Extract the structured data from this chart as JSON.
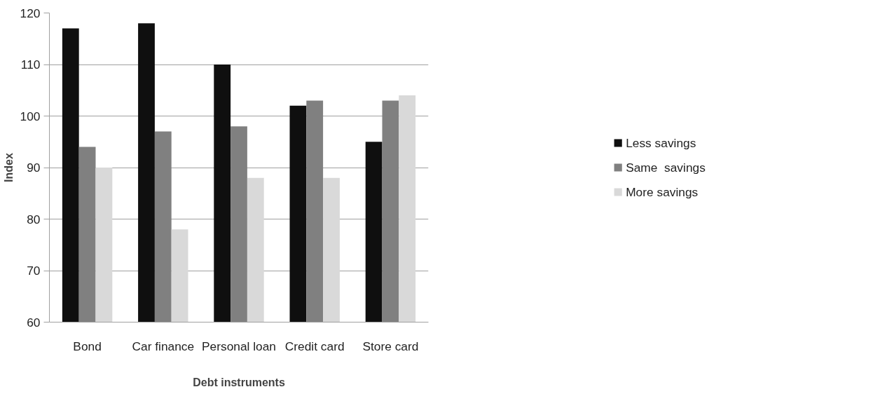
{
  "chart_data": {
    "type": "bar",
    "xlabel": "Debt instruments",
    "ylabel": "Index",
    "categories": [
      "Bond",
      "Car finance",
      "Personal loan",
      "Credit card",
      "Store card"
    ],
    "series": [
      {
        "name": "Less savings",
        "color": "#0f0f0f",
        "values": [
          117,
          118,
          110,
          102,
          95
        ]
      },
      {
        "name": "Same  savings",
        "color": "#808080",
        "values": [
          94,
          97,
          98,
          103,
          103
        ]
      },
      {
        "name": "More savings",
        "color": "#d9d9d9",
        "values": [
          90,
          78,
          88,
          88,
          104
        ]
      }
    ],
    "ylim": [
      60,
      120
    ],
    "yticks": [
      60,
      70,
      80,
      90,
      100,
      110,
      120
    ],
    "grid": "y",
    "legend": "right"
  }
}
